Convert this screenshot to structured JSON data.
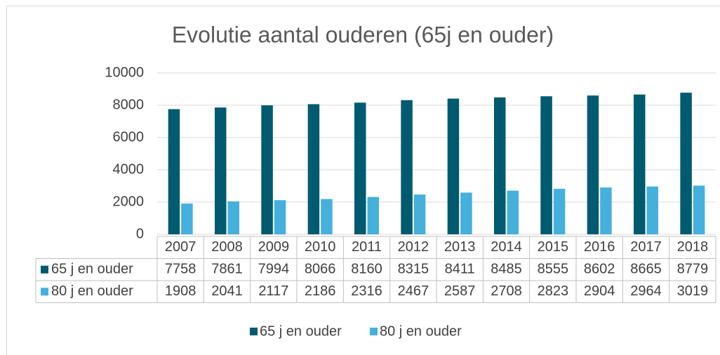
{
  "chart_data": {
    "type": "bar",
    "title": "Evolutie aantal ouderen (65j en ouder)",
    "categories": [
      "2007",
      "2008",
      "2009",
      "2010",
      "2011",
      "2012",
      "2013",
      "2014",
      "2015",
      "2016",
      "2017",
      "2018"
    ],
    "series": [
      {
        "name": "65 j en ouder",
        "color": "#005a70",
        "values": [
          7758,
          7861,
          7994,
          8066,
          8160,
          8315,
          8411,
          8485,
          8555,
          8602,
          8665,
          8779
        ]
      },
      {
        "name": "80 j en ouder",
        "color": "#45b0dc",
        "values": [
          1908,
          2041,
          2117,
          2186,
          2316,
          2467,
          2587,
          2708,
          2823,
          2904,
          2964,
          3019
        ]
      }
    ],
    "ylim": [
      0,
      10000
    ],
    "yticks": [
      0,
      2000,
      4000,
      6000,
      8000,
      10000
    ],
    "grid": true,
    "legend": "bottom"
  }
}
